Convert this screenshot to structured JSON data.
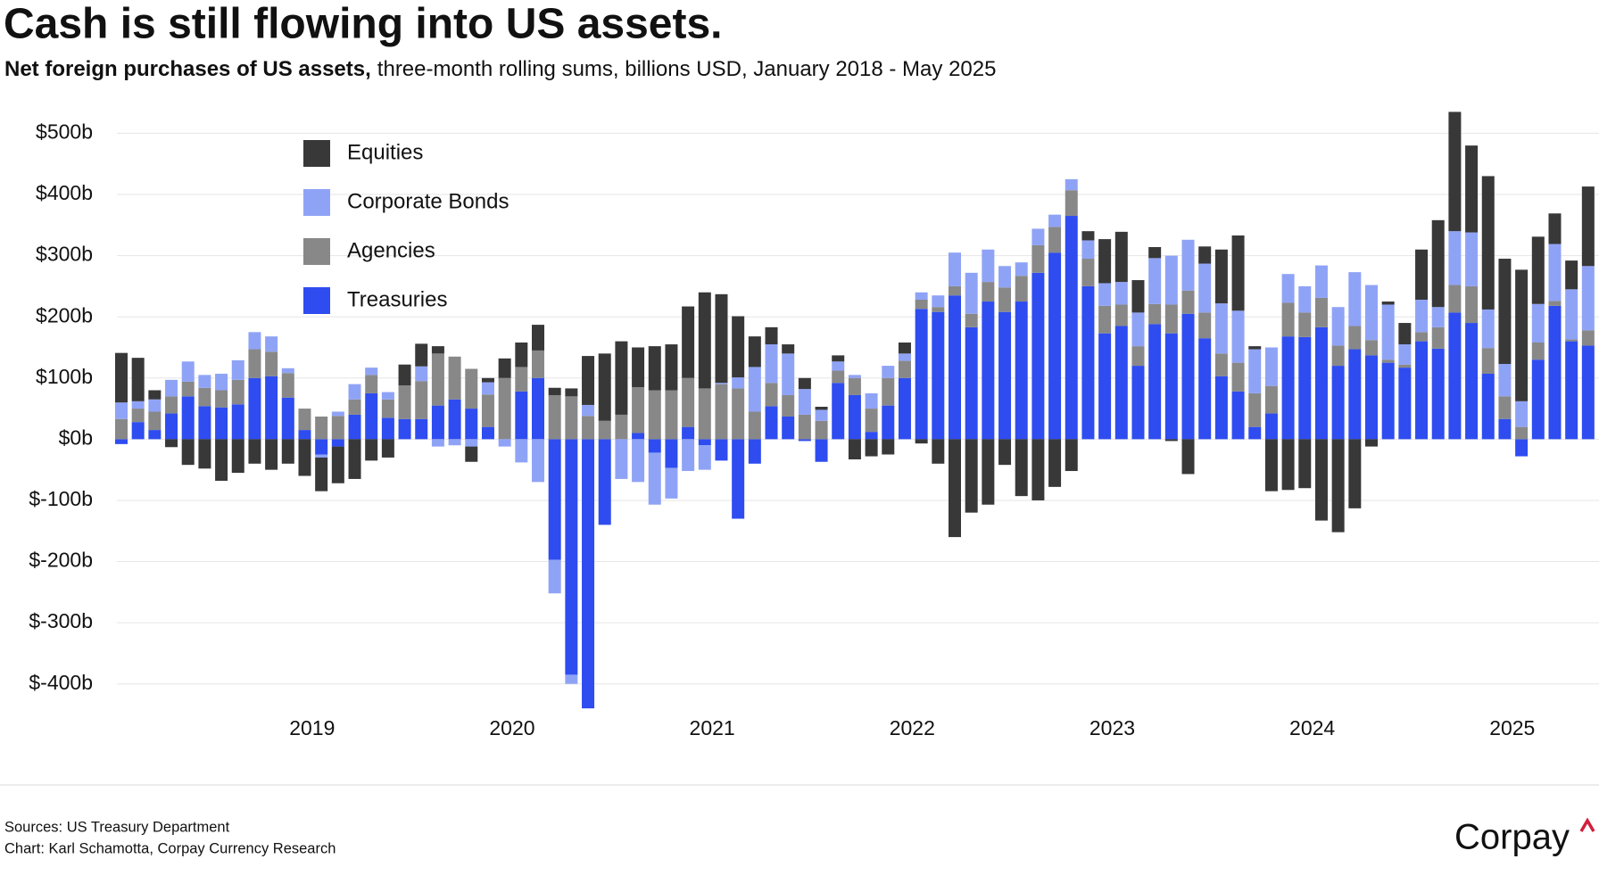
{
  "chart_data": {
    "type": "stacked-bar",
    "title": "Cash is still flowing into US assets.",
    "subtitle_lead": "Net foreign purchases of US assets,",
    "subtitle": "three-month rolling sums, billions USD, January 2018 - May 2025",
    "source": "Sources: US Treasury Department",
    "credit": "Chart: Karl Schamotta, Corpay Currency Research",
    "logo": "Corpay",
    "categories": [
      null,
      null,
      null,
      null,
      null,
      null,
      null,
      null,
      null,
      null,
      null,
      null,
      "2019",
      null,
      null,
      null,
      null,
      null,
      null,
      null,
      null,
      null,
      null,
      null,
      "2020",
      null,
      null,
      null,
      null,
      null,
      null,
      null,
      null,
      null,
      null,
      null,
      "2021",
      null,
      null,
      null,
      null,
      null,
      null,
      null,
      null,
      null,
      null,
      null,
      "2022",
      null,
      null,
      null,
      null,
      null,
      null,
      null,
      null,
      null,
      null,
      null,
      "2023",
      null,
      null,
      null,
      null,
      null,
      null,
      null,
      null,
      null,
      null,
      null,
      "2024",
      null,
      null,
      null,
      null,
      null,
      null,
      null,
      null,
      null,
      null,
      null,
      "2025",
      null,
      null,
      null,
      null
    ],
    "series": [
      {
        "name": "Equities",
        "color": "#383838",
        "values": [
          81,
          71,
          15,
          -13,
          -42,
          -48,
          -68,
          -55,
          -40,
          -50,
          -40,
          -60,
          -55,
          -60,
          -65,
          -35,
          -30,
          34,
          37,
          12,
          0,
          -25,
          7,
          32,
          40,
          42,
          12,
          13,
          80,
          110,
          120,
          65,
          72,
          75,
          117,
          157,
          145,
          100,
          50,
          28,
          15,
          18,
          5,
          10,
          -33,
          -28,
          -25,
          18,
          -7,
          -40,
          -160,
          -120,
          -107,
          -42,
          -93,
          -100,
          -78,
          -52,
          15,
          72,
          82,
          53,
          18,
          -3,
          -57,
          28,
          88,
          123,
          5,
          -85,
          -83,
          -80,
          -133,
          -152,
          -113,
          -12,
          5,
          35,
          82,
          142,
          195,
          142,
          218,
          172,
          215,
          110,
          50,
          47,
          130
        ]
      },
      {
        "name": "Corporate Bonds",
        "color": "#8fa3f6",
        "values": [
          27,
          12,
          20,
          27,
          33,
          21,
          27,
          32,
          28,
          25,
          8,
          0,
          -5,
          7,
          25,
          12,
          12,
          0,
          24,
          -12,
          -10,
          -12,
          20,
          -12,
          -38,
          -70,
          -55,
          -15,
          18,
          0,
          -65,
          -70,
          -85,
          -50,
          -52,
          -40,
          2,
          18,
          73,
          63,
          68,
          42,
          18,
          15,
          5,
          25,
          20,
          12,
          12,
          19,
          55,
          67,
          53,
          35,
          22,
          27,
          20,
          18,
          30,
          37,
          37,
          55,
          75,
          80,
          83,
          80,
          82,
          85,
          72,
          63,
          47,
          43,
          53,
          63,
          88,
          90,
          90,
          33,
          53,
          33,
          88,
          88,
          63,
          53,
          42,
          63,
          93,
          82,
          105
        ]
      },
      {
        "name": "Agencies",
        "color": "#888888",
        "values": [
          33,
          22,
          30,
          28,
          24,
          30,
          28,
          40,
          47,
          40,
          40,
          35,
          37,
          38,
          25,
          30,
          30,
          55,
          62,
          85,
          70,
          65,
          53,
          100,
          40,
          45,
          72,
          70,
          38,
          30,
          40,
          75,
          80,
          80,
          80,
          83,
          90,
          83,
          45,
          38,
          35,
          40,
          30,
          20,
          28,
          38,
          45,
          28,
          15,
          8,
          15,
          22,
          32,
          40,
          42,
          45,
          42,
          42,
          45,
          45,
          35,
          32,
          33,
          47,
          38,
          42,
          37,
          47,
          55,
          45,
          55,
          40,
          48,
          33,
          38,
          25,
          5,
          5,
          15,
          35,
          45,
          60,
          42,
          37,
          20,
          28,
          8,
          3,
          25
        ]
      },
      {
        "name": "Treasuries",
        "color": "#2e4cf0",
        "values": [
          -8,
          28,
          15,
          42,
          70,
          54,
          52,
          57,
          100,
          103,
          68,
          15,
          -25,
          -12,
          40,
          75,
          35,
          33,
          33,
          55,
          65,
          50,
          20,
          0,
          78,
          100,
          -197,
          -385,
          -440,
          -140,
          0,
          10,
          -22,
          -47,
          20,
          -10,
          -35,
          -130,
          -40,
          54,
          37,
          -3,
          -37,
          92,
          72,
          12,
          55,
          100,
          213,
          208,
          235,
          183,
          225,
          208,
          225,
          272,
          305,
          365,
          250,
          173,
          185,
          120,
          188,
          173,
          205,
          165,
          103,
          78,
          20,
          42,
          168,
          167,
          183,
          120,
          147,
          137,
          125,
          117,
          160,
          148,
          207,
          190,
          107,
          33,
          -28,
          130,
          218,
          160,
          153
        ]
      }
    ],
    "ylim": [
      -450,
      540
    ],
    "yticks": [
      {
        "value": -400,
        "label": "$-400b"
      },
      {
        "value": -300,
        "label": "$-300b"
      },
      {
        "value": -200,
        "label": "$-200b"
      },
      {
        "value": -100,
        "label": "$-100b"
      },
      {
        "value": 0,
        "label": "$0b"
      },
      {
        "value": 100,
        "label": "$100b"
      },
      {
        "value": 200,
        "label": "$200b"
      },
      {
        "value": 300,
        "label": "$300b"
      },
      {
        "value": 400,
        "label": "$400b"
      },
      {
        "value": 500,
        "label": "$500b"
      }
    ],
    "grid": true,
    "legend": "upper-left"
  }
}
